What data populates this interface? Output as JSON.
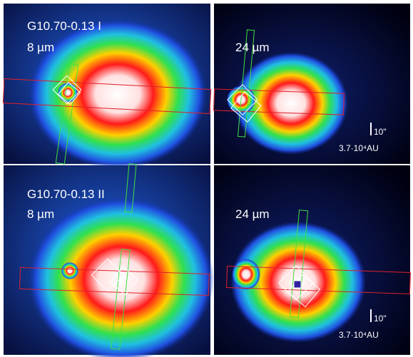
{
  "panels": [
    {
      "title": "G10.70-0.13 I",
      "band": "8 µm"
    },
    {
      "band": "24 µm",
      "scale_bar": "10\"",
      "scale": "3.7·10⁴AU"
    },
    {
      "title": "G10.70-0.13 II",
      "band": "8 µm"
    },
    {
      "band": "24 µm",
      "scale_bar": "10\"",
      "scale": "3.7·10⁴AU"
    }
  ]
}
